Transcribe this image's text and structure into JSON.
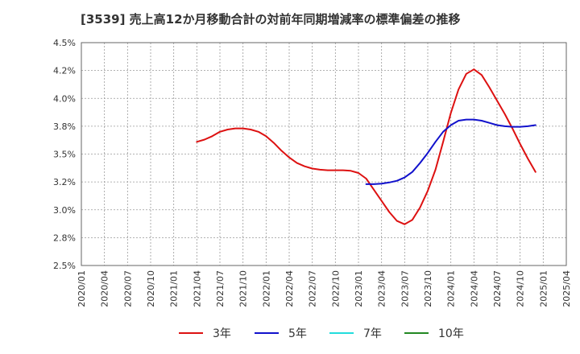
{
  "chart_data": {
    "type": "line",
    "title": "[3539]  売上高12か月移動合計の対前年同期増減率の標準偏差の推移",
    "xlabel": "",
    "ylabel": "",
    "x_ticks": [
      "2020/01",
      "2020/04",
      "2020/07",
      "2020/10",
      "2021/01",
      "2021/04",
      "2021/07",
      "2021/10",
      "2022/01",
      "2022/04",
      "2022/07",
      "2022/10",
      "2023/01",
      "2023/04",
      "2023/07",
      "2023/10",
      "2024/01",
      "2024/04",
      "2024/07",
      "2024/10",
      "2025/01",
      "2025/04"
    ],
    "y_ticks": [
      "2.5%",
      "2.8%",
      "3.0%",
      "3.2%",
      "3.5%",
      "3.8%",
      "4.0%",
      "4.2%",
      "4.5%"
    ],
    "ylim": [
      2.5,
      4.5
    ],
    "grid": true,
    "legend_position": "bottom",
    "series": [
      {
        "name": "3年",
        "color": "#dd1111",
        "points": [
          [
            "2021/04",
            3.61
          ],
          [
            "2021/05",
            3.63
          ],
          [
            "2021/06",
            3.66
          ],
          [
            "2021/07",
            3.7
          ],
          [
            "2021/08",
            3.72
          ],
          [
            "2021/09",
            3.73
          ],
          [
            "2021/10",
            3.73
          ],
          [
            "2021/11",
            3.72
          ],
          [
            "2021/12",
            3.7
          ],
          [
            "2022/01",
            3.66
          ],
          [
            "2022/02",
            3.6
          ],
          [
            "2022/03",
            3.53
          ],
          [
            "2022/04",
            3.47
          ],
          [
            "2022/05",
            3.42
          ],
          [
            "2022/06",
            3.39
          ],
          [
            "2022/07",
            3.37
          ],
          [
            "2022/08",
            3.36
          ],
          [
            "2022/09",
            3.355
          ],
          [
            "2022/10",
            3.355
          ],
          [
            "2022/11",
            3.355
          ],
          [
            "2022/12",
            3.35
          ],
          [
            "2023/01",
            3.33
          ],
          [
            "2023/02",
            3.28
          ],
          [
            "2023/03",
            3.18
          ],
          [
            "2023/04",
            3.08
          ],
          [
            "2023/05",
            2.98
          ],
          [
            "2023/06",
            2.9
          ],
          [
            "2023/07",
            2.87
          ],
          [
            "2023/08",
            2.91
          ],
          [
            "2023/09",
            3.02
          ],
          [
            "2023/10",
            3.17
          ],
          [
            "2023/11",
            3.36
          ],
          [
            "2023/12",
            3.61
          ],
          [
            "2024/01",
            3.87
          ],
          [
            "2024/02",
            4.08
          ],
          [
            "2024/03",
            4.22
          ],
          [
            "2024/04",
            4.26
          ],
          [
            "2024/05",
            4.21
          ],
          [
            "2024/06",
            4.1
          ],
          [
            "2024/07",
            3.98
          ],
          [
            "2024/08",
            3.86
          ],
          [
            "2024/09",
            3.73
          ],
          [
            "2024/10",
            3.59
          ],
          [
            "2024/11",
            3.46
          ],
          [
            "2024/12",
            3.34
          ]
        ]
      },
      {
        "name": "5年",
        "color": "#1111cc",
        "points": [
          [
            "2023/02",
            3.23
          ],
          [
            "2023/03",
            3.23
          ],
          [
            "2023/04",
            3.235
          ],
          [
            "2023/05",
            3.245
          ],
          [
            "2023/06",
            3.26
          ],
          [
            "2023/07",
            3.29
          ],
          [
            "2023/08",
            3.34
          ],
          [
            "2023/09",
            3.42
          ],
          [
            "2023/10",
            3.51
          ],
          [
            "2023/11",
            3.61
          ],
          [
            "2023/12",
            3.7
          ],
          [
            "2024/01",
            3.76
          ],
          [
            "2024/02",
            3.8
          ],
          [
            "2024/03",
            3.81
          ],
          [
            "2024/04",
            3.81
          ],
          [
            "2024/05",
            3.8
          ],
          [
            "2024/06",
            3.78
          ],
          [
            "2024/07",
            3.76
          ],
          [
            "2024/08",
            3.75
          ],
          [
            "2024/09",
            3.745
          ],
          [
            "2024/10",
            3.745
          ],
          [
            "2024/11",
            3.75
          ],
          [
            "2024/12",
            3.76
          ]
        ]
      },
      {
        "name": "7年",
        "color": "#22dddd",
        "points": []
      },
      {
        "name": "10年",
        "color": "#228822",
        "points": []
      }
    ]
  }
}
